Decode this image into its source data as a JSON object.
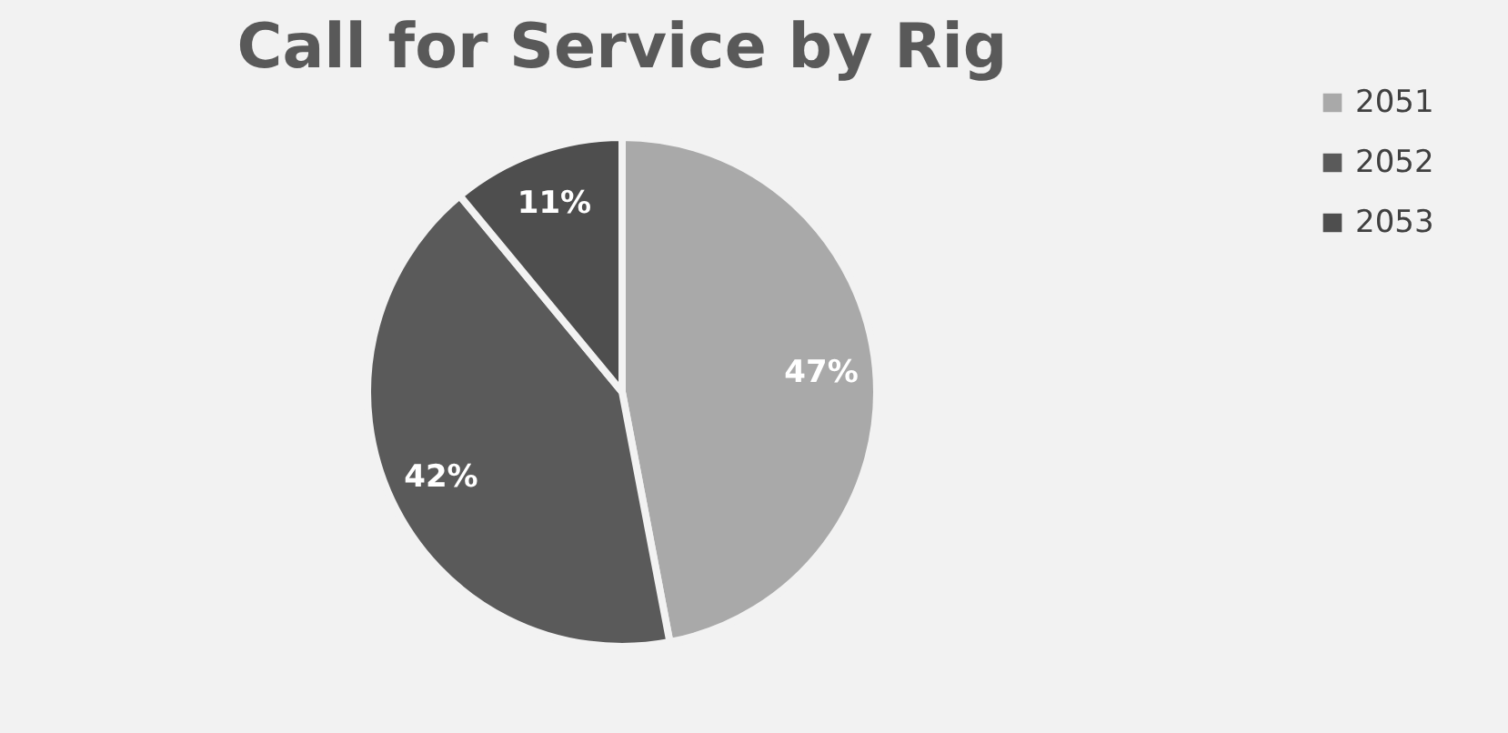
{
  "chart_data": {
    "type": "pie",
    "title": "Call for Service by Rig",
    "categories": [
      "2051",
      "2052",
      "2053"
    ],
    "values": [
      47,
      42,
      11
    ],
    "value_labels": [
      "47%",
      "42%",
      "11%"
    ],
    "colors": [
      "#a9a9a9",
      "#5a5a5a",
      "#4e4e4e"
    ],
    "legend": "right"
  }
}
